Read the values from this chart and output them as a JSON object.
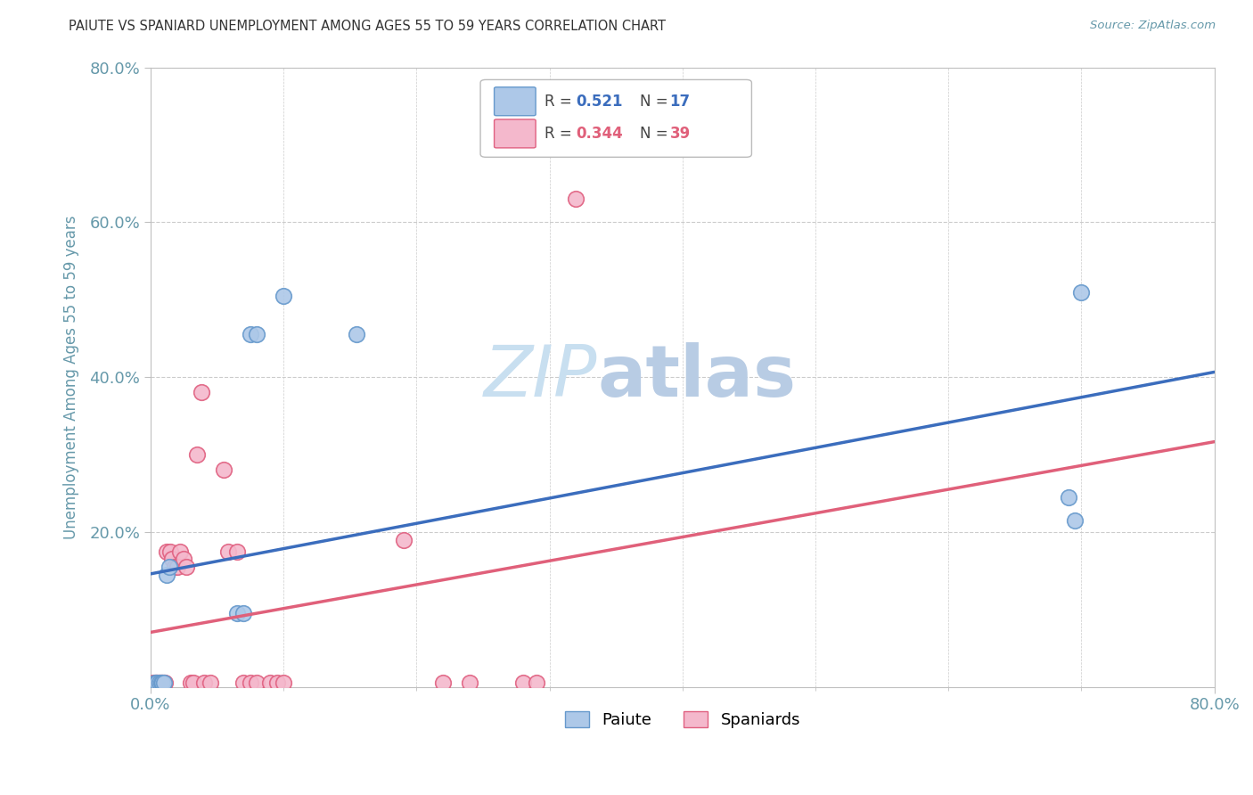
{
  "title": "PAIUTE VS SPANIARD UNEMPLOYMENT AMONG AGES 55 TO 59 YEARS CORRELATION CHART",
  "source": "Source: ZipAtlas.com",
  "ylabel": "Unemployment Among Ages 55 to 59 years",
  "xlim": [
    0,
    0.8
  ],
  "ylim": [
    0,
    0.8
  ],
  "paiute_color": "#adc8e8",
  "spaniard_color": "#f4b8cc",
  "paiute_edge_color": "#6699cc",
  "spaniard_edge_color": "#e06080",
  "paiute_line_color": "#3b6dbd",
  "spaniard_line_color": "#e0607a",
  "paiute_R": 0.521,
  "paiute_N": 17,
  "spaniard_R": 0.344,
  "spaniard_N": 39,
  "paiute_x": [
    0.003,
    0.005,
    0.007,
    0.008,
    0.009,
    0.01,
    0.012,
    0.014,
    0.065,
    0.07,
    0.075,
    0.08,
    0.1,
    0.155,
    0.69,
    0.695,
    0.7
  ],
  "paiute_y": [
    0.005,
    0.005,
    0.005,
    0.005,
    0.005,
    0.005,
    0.145,
    0.155,
    0.095,
    0.095,
    0.455,
    0.455,
    0.505,
    0.455,
    0.245,
    0.215,
    0.51
  ],
  "spaniard_x": [
    0.002,
    0.003,
    0.004,
    0.005,
    0.006,
    0.007,
    0.008,
    0.009,
    0.01,
    0.011,
    0.012,
    0.015,
    0.016,
    0.018,
    0.02,
    0.022,
    0.025,
    0.027,
    0.03,
    0.032,
    0.035,
    0.038,
    0.04,
    0.045,
    0.055,
    0.058,
    0.065,
    0.07,
    0.075,
    0.08,
    0.09,
    0.095,
    0.1,
    0.19,
    0.22,
    0.24,
    0.28,
    0.29,
    0.32
  ],
  "spaniard_y": [
    0.005,
    0.005,
    0.005,
    0.005,
    0.005,
    0.005,
    0.005,
    0.005,
    0.005,
    0.005,
    0.175,
    0.175,
    0.165,
    0.155,
    0.155,
    0.175,
    0.165,
    0.155,
    0.005,
    0.005,
    0.3,
    0.38,
    0.005,
    0.005,
    0.28,
    0.175,
    0.175,
    0.005,
    0.005,
    0.005,
    0.005,
    0.005,
    0.005,
    0.19,
    0.005,
    0.005,
    0.005,
    0.005,
    0.63
  ],
  "background_color": "#ffffff",
  "grid_color": "#cccccc",
  "watermark_zip": "ZIP",
  "watermark_atlas": "atlas",
  "watermark_color_zip": "#c8dff0",
  "watermark_color_atlas": "#b8cce4",
  "title_color": "#333333",
  "axis_label_color": "#6699aa",
  "tick_color": "#6699aa",
  "legend_border_color": "#bbbbbb"
}
